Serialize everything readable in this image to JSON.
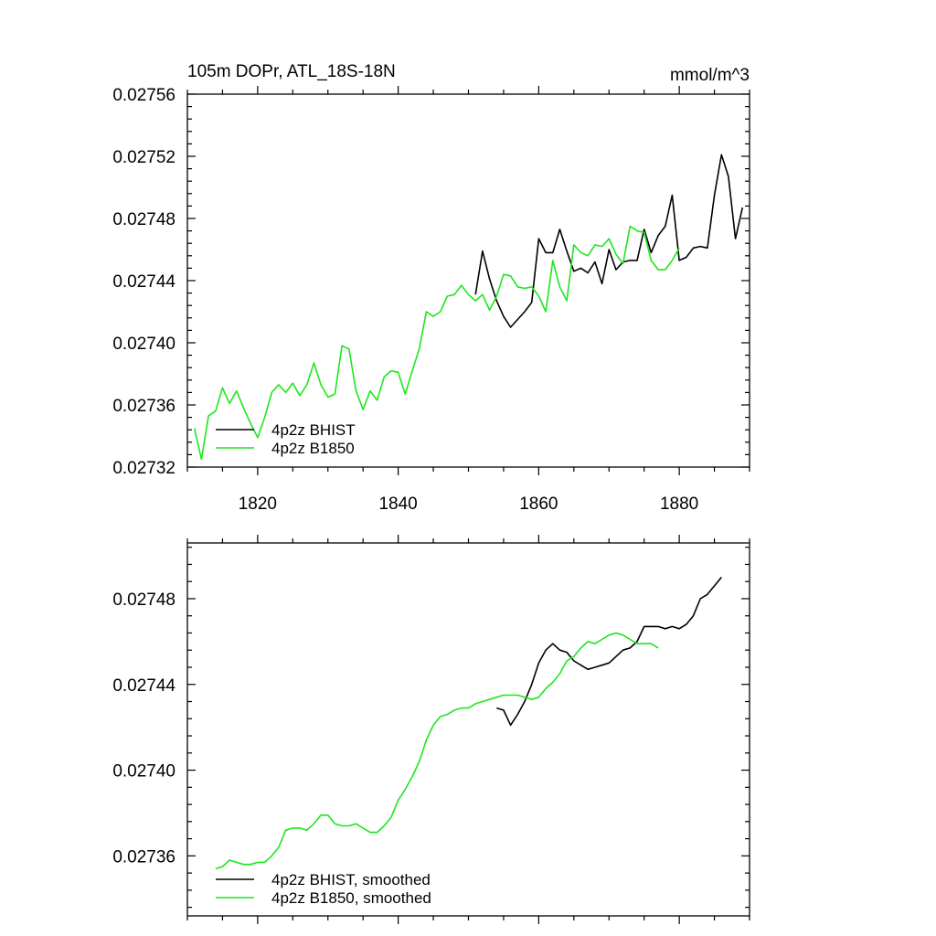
{
  "chart_data": [
    {
      "type": "line",
      "title": "105m DOPr, ATL_18S-18N",
      "units": "mmol/m^3",
      "xlabel": "",
      "ylabel": "",
      "xlim": [
        1810,
        1890
      ],
      "ylim": [
        0.02732,
        0.02756
      ],
      "xticks": [
        1820,
        1840,
        1860,
        1880
      ],
      "xtick_labels": [
        "1820",
        "1840",
        "1860",
        "1880"
      ],
      "yticks": [
        0.02732,
        0.02736,
        0.0274,
        0.02744,
        0.02748,
        0.02752,
        0.02756
      ],
      "ytick_labels": [
        "0.02732",
        "0.02736",
        "0.02740",
        "0.02744",
        "0.02748",
        "0.02752",
        "0.02756"
      ],
      "legend_position": "bottom-left",
      "series": [
        {
          "name": "4p2z BHIST",
          "color": "#000000",
          "x": [
            1851,
            1852,
            1853,
            1854,
            1855,
            1856,
            1857,
            1858,
            1859,
            1860,
            1861,
            1862,
            1863,
            1864,
            1865,
            1866,
            1867,
            1868,
            1869,
            1870,
            1871,
            1872,
            1873,
            1874,
            1875,
            1876,
            1877,
            1878,
            1879,
            1880,
            1881,
            1882,
            1883,
            1884,
            1885,
            1886,
            1887,
            1888,
            1889
          ],
          "values": [
            0.027431,
            0.027459,
            0.027441,
            0.027427,
            0.027417,
            0.02741,
            0.027415,
            0.02742,
            0.027426,
            0.027467,
            0.027458,
            0.027458,
            0.027473,
            0.027459,
            0.027446,
            0.027448,
            0.027445,
            0.027452,
            0.027438,
            0.02746,
            0.027447,
            0.027452,
            0.027453,
            0.027453,
            0.027473,
            0.027458,
            0.027469,
            0.027475,
            0.027495,
            0.027453,
            0.027455,
            0.027461,
            0.027462,
            0.027461,
            0.027495,
            0.027521,
            0.027507,
            0.027467,
            0.027487
          ]
        },
        {
          "name": "4p2z B1850",
          "color": "#1ee61e",
          "x": [
            1811,
            1812,
            1813,
            1814,
            1815,
            1816,
            1817,
            1818,
            1819,
            1820,
            1821,
            1822,
            1823,
            1824,
            1825,
            1826,
            1827,
            1828,
            1829,
            1830,
            1831,
            1832,
            1833,
            1834,
            1835,
            1836,
            1837,
            1838,
            1839,
            1840,
            1841,
            1842,
            1843,
            1844,
            1845,
            1846,
            1847,
            1848,
            1849,
            1850,
            1851,
            1852,
            1853,
            1854,
            1855,
            1856,
            1857,
            1858,
            1859,
            1860,
            1861,
            1862,
            1863,
            1864,
            1865,
            1866,
            1867,
            1868,
            1869,
            1870,
            1871,
            1872,
            1873,
            1874,
            1875,
            1876,
            1877,
            1878,
            1879,
            1880
          ],
          "values": [
            0.027345,
            0.027325,
            0.027353,
            0.027356,
            0.027371,
            0.027361,
            0.027369,
            0.027358,
            0.027348,
            0.027339,
            0.027352,
            0.027368,
            0.027373,
            0.027368,
            0.027374,
            0.027366,
            0.027373,
            0.027387,
            0.027373,
            0.027365,
            0.027367,
            0.027398,
            0.027396,
            0.027369,
            0.027357,
            0.027369,
            0.027363,
            0.027378,
            0.027382,
            0.027381,
            0.027367,
            0.027382,
            0.027396,
            0.02742,
            0.027417,
            0.02742,
            0.02743,
            0.027431,
            0.027437,
            0.027431,
            0.027427,
            0.027431,
            0.027421,
            0.02743,
            0.027444,
            0.027443,
            0.027436,
            0.027435,
            0.027436,
            0.02743,
            0.02742,
            0.027453,
            0.027436,
            0.027427,
            0.027463,
            0.027458,
            0.027456,
            0.027463,
            0.027462,
            0.027467,
            0.027457,
            0.027451,
            0.027475,
            0.027472,
            0.027471,
            0.027453,
            0.027447,
            0.027447,
            0.027453,
            0.027461
          ]
        }
      ]
    },
    {
      "type": "line",
      "title": "",
      "units": "",
      "xlabel": "",
      "ylabel": "",
      "xlim": [
        1810,
        1890
      ],
      "ylim": [
        0.027332,
        0.027506
      ],
      "xticks": [
        1820,
        1840,
        1860,
        1880
      ],
      "xtick_labels": [],
      "yticks": [
        0.02736,
        0.0274,
        0.02744,
        0.02748
      ],
      "ytick_labels": [
        "0.02736",
        "0.02740",
        "0.02744",
        "0.02748"
      ],
      "legend_position": "bottom-left",
      "series": [
        {
          "name": "4p2z BHIST, smoothed",
          "color": "#000000",
          "x": [
            1854,
            1855,
            1856,
            1857,
            1858,
            1859,
            1860,
            1861,
            1862,
            1863,
            1864,
            1865,
            1866,
            1867,
            1868,
            1869,
            1870,
            1871,
            1872,
            1873,
            1874,
            1875,
            1876,
            1877,
            1878,
            1879,
            1880,
            1881,
            1882,
            1883,
            1884,
            1885,
            1886
          ],
          "values": [
            0.027429,
            0.027428,
            0.027421,
            0.027426,
            0.027432,
            0.02744,
            0.02745,
            0.027456,
            0.027459,
            0.027456,
            0.027455,
            0.027451,
            0.027449,
            0.027447,
            0.027448,
            0.027449,
            0.02745,
            0.027453,
            0.027456,
            0.027457,
            0.02746,
            0.027467,
            0.027467,
            0.027467,
            0.027466,
            0.027467,
            0.027466,
            0.027468,
            0.027472,
            0.02748,
            0.027482,
            0.027486,
            0.02749
          ]
        },
        {
          "name": "4p2z B1850, smoothed",
          "color": "#1ee61e",
          "x": [
            1814,
            1815,
            1816,
            1817,
            1818,
            1819,
            1820,
            1821,
            1822,
            1823,
            1824,
            1825,
            1826,
            1827,
            1828,
            1829,
            1830,
            1831,
            1832,
            1833,
            1834,
            1835,
            1836,
            1837,
            1838,
            1839,
            1840,
            1841,
            1842,
            1843,
            1844,
            1845,
            1846,
            1847,
            1848,
            1849,
            1850,
            1851,
            1852,
            1853,
            1854,
            1855,
            1856,
            1857,
            1858,
            1859,
            1860,
            1861,
            1862,
            1863,
            1864,
            1865,
            1866,
            1867,
            1868,
            1869,
            1870,
            1871,
            1872,
            1873,
            1874,
            1875,
            1876,
            1877
          ],
          "values": [
            0.027354,
            0.027355,
            0.027358,
            0.027357,
            0.027356,
            0.027356,
            0.027357,
            0.027357,
            0.02736,
            0.027364,
            0.027372,
            0.027373,
            0.027373,
            0.027372,
            0.027375,
            0.027379,
            0.027379,
            0.027375,
            0.027374,
            0.027374,
            0.027375,
            0.027373,
            0.027371,
            0.027371,
            0.027374,
            0.027378,
            0.027386,
            0.027391,
            0.027397,
            0.027404,
            0.027414,
            0.027421,
            0.027425,
            0.027426,
            0.027428,
            0.027429,
            0.027429,
            0.027431,
            0.027432,
            0.027433,
            0.027434,
            0.027435,
            0.027435,
            0.027435,
            0.027434,
            0.027433,
            0.027434,
            0.027438,
            0.027441,
            0.027445,
            0.027451,
            0.027453,
            0.027457,
            0.02746,
            0.027459,
            0.027461,
            0.027463,
            0.027464,
            0.027463,
            0.027461,
            0.027459,
            0.027459,
            0.027459,
            0.027457
          ]
        }
      ]
    }
  ]
}
